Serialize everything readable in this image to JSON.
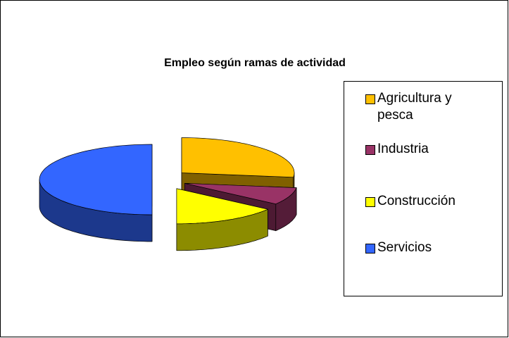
{
  "chart_data": {
    "type": "pie",
    "title": "Empleo según ramas de actividad",
    "categories": [
      "Agricultura y pesca",
      "Industria",
      "Construcción",
      "Servicios"
    ],
    "values": [
      27,
      8,
      15,
      50
    ],
    "colors": [
      "#FFC000",
      "#993366",
      "#FFFF00",
      "#3366FF"
    ],
    "three_d": true,
    "exploded": true,
    "legend": "right"
  }
}
